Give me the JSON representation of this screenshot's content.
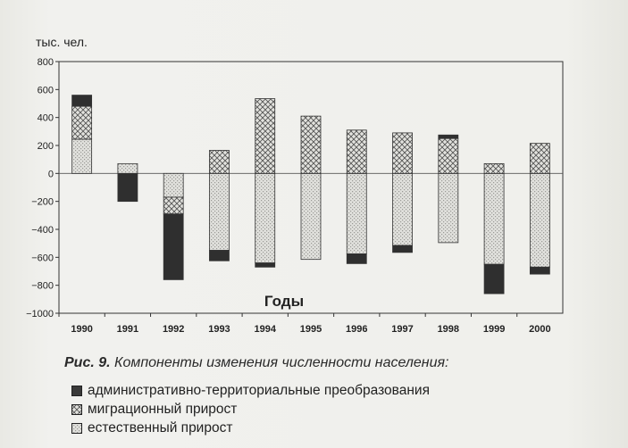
{
  "chart_data": {
    "type": "bar",
    "stacked": true,
    "ylabel": "тыс. чел.",
    "xlabel": "Годы",
    "categories": [
      "1990",
      "1991",
      "1992",
      "1993",
      "1994",
      "1995",
      "1996",
      "1997",
      "1998",
      "1999",
      "2000"
    ],
    "ylim": [
      -1000,
      800
    ],
    "yticks": [
      800,
      600,
      400,
      200,
      0,
      -200,
      -400,
      -600,
      -800,
      -1000
    ],
    "series": [
      {
        "name": "естественный прирост",
        "values": [
          245,
          70,
          -170,
          -550,
          -640,
          -615,
          -575,
          -515,
          -495,
          -650,
          -670
        ],
        "color": "#d4d4d0",
        "pattern": "dots"
      },
      {
        "name": "миграционный прирост",
        "values": [
          235,
          0,
          -120,
          165,
          535,
          410,
          310,
          290,
          250,
          70,
          215
        ],
        "color": "#bdbdb8",
        "pattern": "crosshatch"
      },
      {
        "name": "административно-территориальные преобразования",
        "values": [
          80,
          -200,
          -470,
          -75,
          -30,
          0,
          -70,
          -50,
          25,
          -210,
          -50
        ],
        "color": "#3a3a3a",
        "pattern": "solid"
      }
    ],
    "grid": false,
    "legend_position": "bottom"
  },
  "caption": {
    "prefix": "Рис. 9.",
    "text": "Компоненты изменения численности населения:"
  },
  "legend": {
    "items": [
      {
        "label": "административно-территориальные преобразования",
        "color": "#3a3a3a"
      },
      {
        "label": "миграционный прирост",
        "color": "#bdbdb8"
      },
      {
        "label": "естественный прирост",
        "color": "#d4d4d0"
      }
    ]
  }
}
